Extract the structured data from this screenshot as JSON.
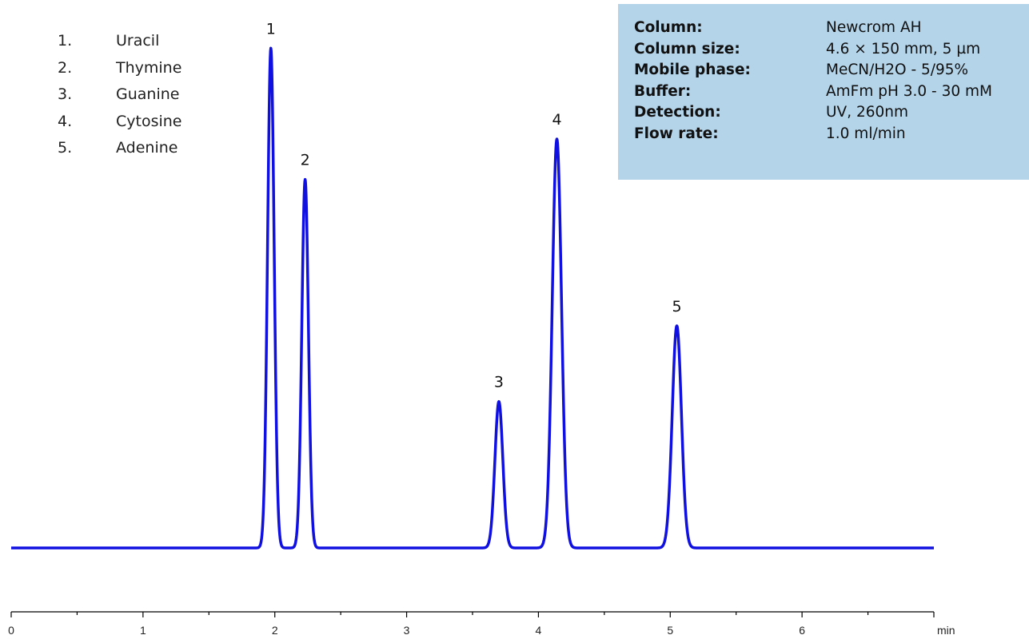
{
  "chart_data": {
    "type": "line",
    "xlabel": "min",
    "xlim": [
      0,
      7
    ],
    "x_ticks": [
      "0",
      "1",
      "2",
      "3",
      "4",
      "5",
      "6"
    ],
    "series_color": "#1010e0",
    "peaks": [
      {
        "label": "1",
        "time": 1.97,
        "height": 0.99,
        "width": 0.025
      },
      {
        "label": "2",
        "time": 2.23,
        "height": 0.73,
        "width": 0.025
      },
      {
        "label": "3",
        "time": 3.7,
        "height": 0.29,
        "width": 0.03
      },
      {
        "label": "4",
        "time": 4.14,
        "height": 0.81,
        "width": 0.035
      },
      {
        "label": "5",
        "time": 5.05,
        "height": 0.44,
        "width": 0.035
      }
    ]
  },
  "legend": [
    {
      "num": "1.",
      "name": "Uracil"
    },
    {
      "num": "2.",
      "name": "Thymine"
    },
    {
      "num": "3.",
      "name": "Guanine"
    },
    {
      "num": "4.",
      "name": "Cytosine"
    },
    {
      "num": "5.",
      "name": "Adenine"
    }
  ],
  "conditions": [
    {
      "key": "Column:",
      "value": "Newcrom AH"
    },
    {
      "key": "Column size:",
      "value": "4.6 × 150 mm, 5 µm"
    },
    {
      "key": "Mobile phase:",
      "value": "MeCN/H2O - 5/95%"
    },
    {
      "key": "Buffer:",
      "value": "AmFm pH 3.0 - 30 mM"
    },
    {
      "key": "Detection:",
      "value": "UV, 260nm"
    },
    {
      "key": "Flow rate:",
      "value": "1.0 ml/min"
    }
  ]
}
